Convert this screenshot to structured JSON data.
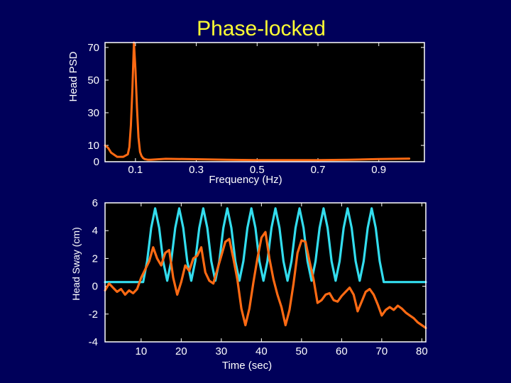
{
  "colors": {
    "background": "#00005a",
    "title": "#ffff33",
    "text": "#ffffff",
    "plot_bg": "#000000",
    "frame": "#ffffff",
    "head_series": "#ff6a13",
    "stimulus_series": "#33ddee"
  },
  "slide": {
    "title": "Phase-locked"
  },
  "chart_data": [
    {
      "type": "line",
      "title": "",
      "xlabel": "Frequency (Hz)",
      "ylabel": "Head PSD",
      "xlim": [
        0,
        1.05
      ],
      "ylim": [
        0,
        73
      ],
      "xticks": [
        0.1,
        0.3,
        0.5,
        0.7,
        0.9
      ],
      "xtick_labels": [
        "0.1",
        "0.3",
        "0.5",
        "0.7",
        "0.9"
      ],
      "yticks": [
        0,
        10,
        30,
        50,
        70
      ],
      "ytick_labels": [
        "0",
        "10",
        "30",
        "50",
        "70"
      ],
      "grid": false,
      "series": [
        {
          "color": "#ff6a13",
          "x": [
            0,
            0.01,
            0.02,
            0.04,
            0.06,
            0.075,
            0.08,
            0.085,
            0.09,
            0.095,
            0.1,
            0.105,
            0.11,
            0.115,
            0.12,
            0.125,
            0.13,
            0.14,
            0.15,
            0.2,
            0.3,
            0.4,
            0.5,
            0.6,
            0.7,
            0.8,
            0.9,
            1.0
          ],
          "y": [
            10,
            8.5,
            5.5,
            3,
            3,
            4.5,
            9,
            22,
            45,
            73,
            56,
            33,
            15,
            6,
            3.5,
            2.2,
            1.6,
            1.2,
            1.2,
            1.8,
            1.5,
            1.2,
            1.0,
            1.0,
            1.0,
            1.2,
            1.6,
            1.9
          ]
        }
      ]
    },
    {
      "type": "line",
      "title": "",
      "xlabel": "Time (sec)",
      "ylabel": "Head Sway (cm)",
      "xlim": [
        1,
        81
      ],
      "ylim": [
        -4,
        6
      ],
      "xticks": [
        10,
        20,
        30,
        40,
        50,
        60,
        70,
        80
      ],
      "xtick_labels": [
        "10",
        "20",
        "30",
        "40",
        "50",
        "60",
        "70",
        "80"
      ],
      "yticks": [
        -4,
        -2,
        0,
        2,
        4,
        6
      ],
      "ytick_labels": [
        "-4",
        "-2",
        "0",
        "2",
        "4",
        "6"
      ],
      "grid": false,
      "series": [
        {
          "color": "#33ddee",
          "x": [
            1,
            10.5,
            11.5,
            12.5,
            13.5,
            14.5,
            15.5,
            16.5,
            17.5,
            18.5,
            19.5,
            20.5,
            21.5,
            22.5,
            23.5,
            24.5,
            25.5,
            26.5,
            27.5,
            28.5,
            29.5,
            30.5,
            31.5,
            32.5,
            33.5,
            34.5,
            35.5,
            36.5,
            37.5,
            38.5,
            39.5,
            40.5,
            41.5,
            42.5,
            43.5,
            44.5,
            45.5,
            46.5,
            47.5,
            48.5,
            49.5,
            50.5,
            51.5,
            52.5,
            53.5,
            54.5,
            55.5,
            56.5,
            57.5,
            58.5,
            59.5,
            60.5,
            61.5,
            62.5,
            63.5,
            64.5,
            65.5,
            66.5,
            67.5,
            68.5,
            69.5,
            70.5,
            81
          ],
          "y": [
            0.3,
            0.3,
            1.8,
            4.2,
            5.6,
            4.2,
            1.8,
            0.4,
            1.8,
            4.2,
            5.6,
            4.2,
            1.8,
            0.4,
            1.8,
            4.2,
            5.6,
            4.2,
            1.8,
            0.4,
            1.8,
            4.2,
            5.6,
            4.2,
            1.8,
            0.4,
            1.8,
            4.2,
            5.6,
            4.2,
            1.8,
            0.4,
            1.8,
            4.2,
            5.6,
            4.2,
            1.8,
            0.4,
            1.8,
            4.2,
            5.6,
            4.2,
            1.8,
            0.4,
            1.8,
            4.2,
            5.6,
            4.2,
            1.8,
            0.4,
            1.8,
            4.2,
            5.6,
            4.2,
            1.8,
            0.4,
            1.8,
            4.2,
            5.6,
            4.2,
            1.8,
            0.3,
            0.3
          ]
        },
        {
          "color": "#ff6a13",
          "x": [
            1,
            2,
            3,
            4,
            5,
            6,
            7,
            8,
            9,
            10,
            11,
            12,
            13,
            14,
            15,
            16,
            17,
            18,
            19,
            20,
            21,
            22,
            23,
            24,
            25,
            26,
            27,
            28,
            29,
            30,
            31,
            32,
            33,
            34,
            35,
            36,
            37,
            38,
            39,
            40,
            41,
            42,
            43,
            44,
            45,
            46,
            47,
            48,
            49,
            50,
            51,
            52,
            53,
            54,
            55,
            56,
            57,
            58,
            59,
            60,
            61,
            62,
            63,
            64,
            65,
            66,
            67,
            68,
            69,
            70,
            71,
            72,
            73,
            74,
            75,
            76,
            77,
            78,
            79,
            80,
            81
          ],
          "y": [
            -0.3,
            0.2,
            -0.1,
            -0.4,
            -0.2,
            -0.6,
            -0.3,
            -0.5,
            -0.2,
            0.6,
            1.2,
            1.8,
            2.8,
            2.0,
            1.5,
            2.4,
            2.6,
            0.6,
            -0.6,
            0.3,
            1.5,
            1.1,
            2.0,
            2.2,
            2.8,
            1.0,
            0.4,
            0.2,
            1.2,
            2.2,
            3.2,
            3.4,
            2.0,
            0.5,
            -1.6,
            -2.8,
            -1.6,
            0.3,
            2.0,
            3.5,
            3.9,
            2.0,
            0.5,
            -0.6,
            -1.5,
            -2.8,
            -1.7,
            0.2,
            2.4,
            3.3,
            3.2,
            1.8,
            0.5,
            -1.2,
            -1.0,
            -0.6,
            -0.5,
            -1.0,
            -1.1,
            -0.7,
            -0.4,
            -0.1,
            -0.6,
            -1.8,
            -1.1,
            -0.4,
            -0.2,
            -0.6,
            -1.3,
            -2.1,
            -1.7,
            -1.5,
            -1.7,
            -1.4,
            -1.6,
            -1.9,
            -2.1,
            -2.3,
            -2.6,
            -2.8,
            -3.0
          ]
        }
      ]
    }
  ]
}
